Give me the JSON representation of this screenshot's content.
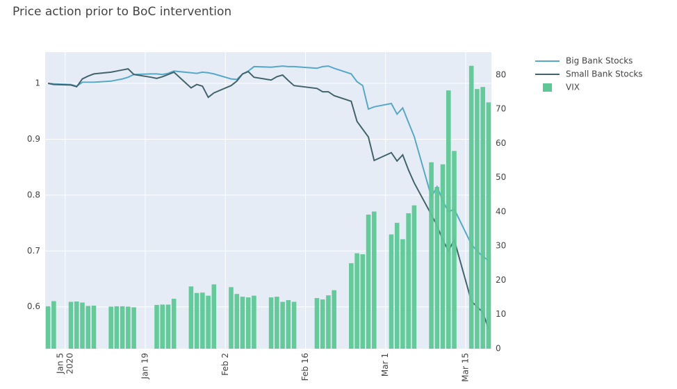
{
  "chart_data": {
    "type": "line-bar",
    "title": "Price action prior to BoC intervention",
    "x": [
      "2020-01-02",
      "2020-01-03",
      "2020-01-06",
      "2020-01-07",
      "2020-01-08",
      "2020-01-09",
      "2020-01-10",
      "2020-01-13",
      "2020-01-14",
      "2020-01-15",
      "2020-01-16",
      "2020-01-17",
      "2020-01-20",
      "2020-01-21",
      "2020-01-22",
      "2020-01-23",
      "2020-01-24",
      "2020-01-27",
      "2020-01-28",
      "2020-01-29",
      "2020-01-30",
      "2020-01-31",
      "2020-02-03",
      "2020-02-04",
      "2020-02-05",
      "2020-02-06",
      "2020-02-07",
      "2020-02-10",
      "2020-02-11",
      "2020-02-12",
      "2020-02-13",
      "2020-02-14",
      "2020-02-18",
      "2020-02-19",
      "2020-02-20",
      "2020-02-21",
      "2020-02-24",
      "2020-02-25",
      "2020-02-26",
      "2020-02-27",
      "2020-02-28",
      "2020-03-02",
      "2020-03-03",
      "2020-03-04",
      "2020-03-05",
      "2020-03-06",
      "2020-03-09",
      "2020-03-10",
      "2020-03-11",
      "2020-03-12",
      "2020-03-13",
      "2020-03-16",
      "2020-03-17",
      "2020-03-18",
      "2020-03-19"
    ],
    "series": [
      {
        "name": "Big Bank Stocks",
        "kind": "line",
        "color": "#56a8c8",
        "values": [
          1.0,
          0.999,
          0.998,
          0.995,
          1.002,
          1.002,
          1.002,
          1.004,
          1.006,
          1.008,
          1.011,
          1.016,
          1.017,
          1.017,
          1.016,
          1.018,
          1.022,
          1.019,
          1.018,
          1.02,
          1.019,
          1.017,
          1.008,
          1.007,
          1.017,
          1.022,
          1.03,
          1.029,
          1.03,
          1.031,
          1.03,
          1.03,
          1.027,
          1.03,
          1.031,
          1.027,
          1.017,
          1.003,
          0.996,
          0.954,
          0.958,
          0.964,
          0.945,
          0.956,
          0.93,
          0.905,
          0.797,
          0.815,
          0.79,
          0.77,
          0.775,
          0.712,
          0.7,
          0.69,
          0.683
        ]
      },
      {
        "name": "Small Bank Stocks",
        "kind": "line",
        "color": "#43636b",
        "values": [
          1.0,
          0.998,
          0.997,
          0.994,
          1.008,
          1.013,
          1.017,
          1.02,
          1.022,
          1.024,
          1.026,
          1.016,
          1.011,
          1.009,
          1.012,
          1.016,
          1.02,
          0.992,
          0.998,
          0.995,
          0.975,
          0.983,
          0.996,
          1.004,
          1.017,
          1.021,
          1.011,
          1.006,
          1.012,
          1.015,
          1.005,
          0.996,
          0.991,
          0.985,
          0.985,
          0.978,
          0.968,
          0.932,
          0.918,
          0.904,
          0.862,
          0.876,
          0.861,
          0.872,
          0.845,
          0.822,
          0.765,
          0.745,
          0.72,
          0.7,
          0.72,
          0.61,
          0.6,
          0.59,
          0.56
        ]
      },
      {
        "name": "VIX",
        "kind": "bar",
        "axis": "y2",
        "color": "#5cc894",
        "values": [
          12.4,
          13.9,
          13.7,
          13.8,
          13.5,
          12.5,
          12.6,
          12.3,
          12.4,
          12.4,
          12.3,
          12.1,
          null,
          12.8,
          12.9,
          12.9,
          14.6,
          18.2,
          16.3,
          16.4,
          15.5,
          18.8,
          18,
          16,
          15.2,
          15,
          15.5,
          15,
          15.2,
          13.7,
          14.2,
          13.7,
          14.8,
          14.4,
          15.6,
          17.1,
          25,
          27.9,
          27.6,
          39.2,
          40.1,
          33.4,
          36.8,
          32,
          39.6,
          41.9,
          54.5,
          47.3,
          53.9,
          75.5,
          57.8,
          82.7,
          75.9,
          76.5,
          72
        ]
      }
    ],
    "xlim": [
      "2020-01-01T12:00:00Z",
      "2020-03-19T12:00:00Z"
    ],
    "xticks": [
      {
        "value": "2020-01-05",
        "label": "Jan 5",
        "sublabel": "2020"
      },
      {
        "value": "2020-01-19",
        "label": "Jan 19"
      },
      {
        "value": "2020-02-02",
        "label": "Feb 2"
      },
      {
        "value": "2020-02-16",
        "label": "Feb 16"
      },
      {
        "value": "2020-03-01",
        "label": "Mar 1"
      },
      {
        "value": "2020-03-15",
        "label": "Mar 15"
      }
    ],
    "ylim": [
      0.525,
      1.056
    ],
    "yticks": [
      0.6,
      0.7,
      0.8,
      0.9,
      1
    ],
    "y2lim": [
      0,
      86.7
    ],
    "y2ticks": [
      0,
      10,
      20,
      30,
      40,
      50,
      60,
      70,
      80
    ],
    "grid": true
  }
}
